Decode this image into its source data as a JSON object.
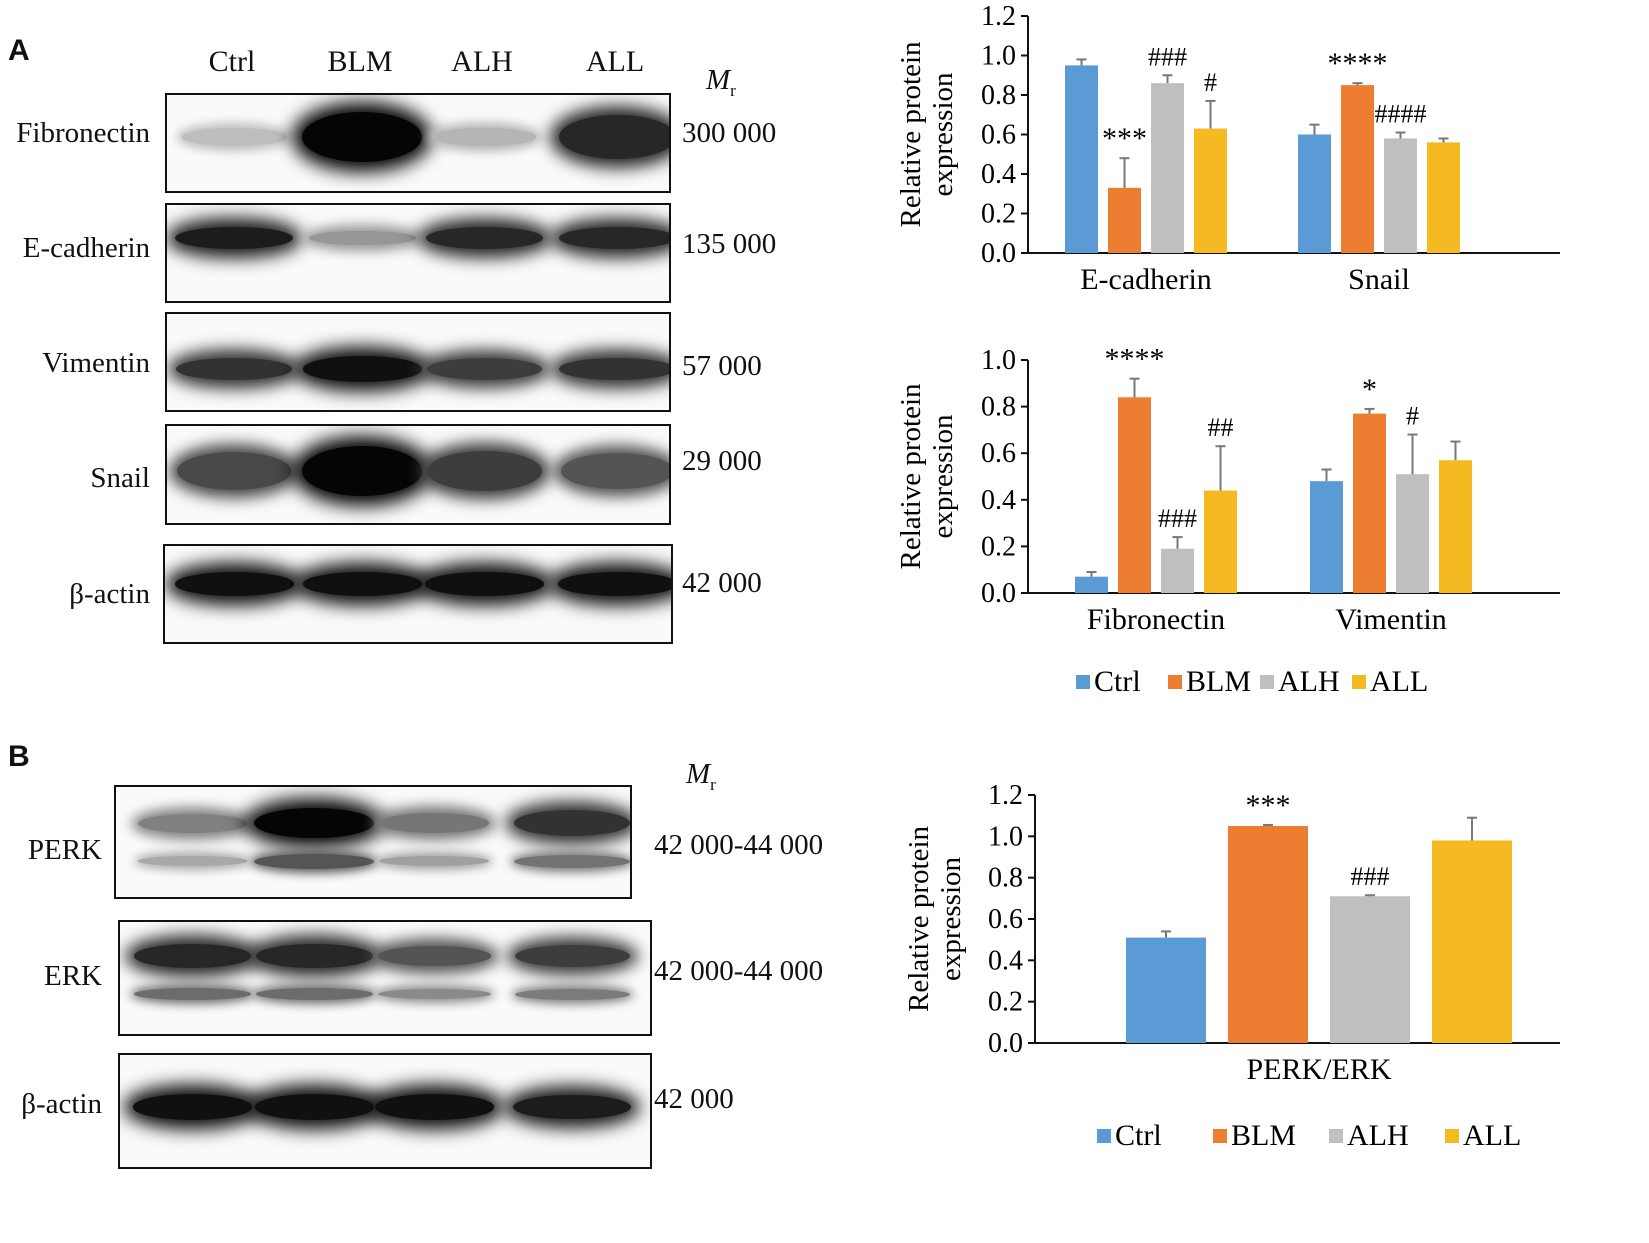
{
  "panels": {
    "A": {
      "letter": "A",
      "lanes": [
        "Ctrl",
        "BLM",
        "ALH",
        "ALL"
      ],
      "mr_symbol": "M",
      "mr_subscript": "r",
      "blots": [
        {
          "protein": "Fibronectin",
          "mw": "300 000",
          "intensity": [
            0.18,
            1.0,
            0.22,
            0.85
          ]
        },
        {
          "protein": "E-cadherin",
          "mw": "135 000",
          "intensity": [
            0.9,
            0.35,
            0.85,
            0.85
          ]
        },
        {
          "protein": "Vimentin",
          "mw": "57 000",
          "intensity": [
            0.8,
            0.95,
            0.75,
            0.8
          ]
        },
        {
          "protein": "Snail",
          "mw": "29 000",
          "intensity": [
            0.7,
            1.0,
            0.75,
            0.65
          ]
        },
        {
          "protein": "β-actin",
          "mw": "42 000",
          "intensity": [
            0.95,
            0.95,
            0.95,
            0.95
          ]
        }
      ]
    },
    "B": {
      "letter": "B",
      "mr_symbol": "M",
      "mr_subscript": "r",
      "blots": [
        {
          "protein": "PERK",
          "mw": "42 000-44 000",
          "intensity": [
            0.45,
            1.0,
            0.5,
            0.8
          ]
        },
        {
          "protein": "ERK",
          "mw": "42 000-44 000",
          "intensity": [
            0.85,
            0.85,
            0.65,
            0.75
          ]
        },
        {
          "protein": "β-actin",
          "mw": "42 000",
          "intensity": [
            0.95,
            0.95,
            0.95,
            0.9
          ]
        }
      ]
    }
  },
  "colors": {
    "Ctrl": "#5b9bd5",
    "BLM": "#ed7d31",
    "ALH": "#bfbfbf",
    "ALL": "#f5b921"
  },
  "chart_data": [
    {
      "type": "bar",
      "categories": [
        "E-cadherin",
        "Snail"
      ],
      "series": [
        {
          "name": "Ctrl",
          "values": [
            0.95,
            0.6
          ],
          "errors": [
            0.03,
            0.05
          ]
        },
        {
          "name": "BLM",
          "values": [
            0.33,
            0.85
          ],
          "errors": [
            0.15,
            0.01
          ]
        },
        {
          "name": "ALH",
          "values": [
            0.86,
            0.58
          ],
          "errors": [
            0.04,
            0.03
          ]
        },
        {
          "name": "ALL",
          "values": [
            0.63,
            0.56
          ],
          "errors": [
            0.14,
            0.02
          ]
        }
      ],
      "annotations": [
        [
          "",
          "***",
          "###",
          "#"
        ],
        [
          "",
          "****",
          "####",
          ""
        ]
      ],
      "ylabel": [
        "Relative protein",
        "expression"
      ],
      "ylim": [
        0,
        1.2
      ],
      "yticks": [
        "0.0",
        "0.2",
        "0.4",
        "0.6",
        "0.8",
        "1.0",
        "1.2"
      ]
    },
    {
      "type": "bar",
      "categories": [
        "Fibronectin",
        "Vimentin"
      ],
      "series": [
        {
          "name": "Ctrl",
          "values": [
            0.07,
            0.48
          ],
          "errors": [
            0.02,
            0.05
          ]
        },
        {
          "name": "BLM",
          "values": [
            0.84,
            0.77
          ],
          "errors": [
            0.08,
            0.02
          ]
        },
        {
          "name": "ALH",
          "values": [
            0.19,
            0.51
          ],
          "errors": [
            0.05,
            0.17
          ]
        },
        {
          "name": "ALL",
          "values": [
            0.44,
            0.57
          ],
          "errors": [
            0.19,
            0.08
          ]
        }
      ],
      "annotations": [
        [
          "",
          "****",
          "###",
          "##"
        ],
        [
          "",
          "*",
          "#",
          ""
        ]
      ],
      "ylabel": [
        "Relative protein",
        "expression"
      ],
      "ylim": [
        0,
        1.0
      ],
      "yticks": [
        "0.0",
        "0.2",
        "0.4",
        "0.6",
        "0.8",
        "1.0"
      ],
      "legend": [
        "Ctrl",
        "BLM",
        "ALH",
        "ALL"
      ]
    },
    {
      "type": "bar",
      "categories": [
        "PERK/ERK"
      ],
      "series": [
        {
          "name": "Ctrl",
          "values": [
            0.51
          ],
          "errors": [
            0.03
          ]
        },
        {
          "name": "BLM",
          "values": [
            1.05
          ],
          "errors": [
            0.005
          ]
        },
        {
          "name": "ALH",
          "values": [
            0.71
          ],
          "errors": [
            0.005
          ]
        },
        {
          "name": "ALL",
          "values": [
            0.98
          ],
          "errors": [
            0.11
          ]
        }
      ],
      "annotations": [
        [
          "",
          "***",
          "###",
          ""
        ]
      ],
      "ylabel": [
        "Relative protein",
        "expression"
      ],
      "ylim": [
        0,
        1.2
      ],
      "yticks": [
        "0.0",
        "0.2",
        "0.4",
        "0.6",
        "0.8",
        "1.0",
        "1.2"
      ],
      "legend": [
        "Ctrl",
        "BLM",
        "ALH",
        "ALL"
      ]
    }
  ]
}
